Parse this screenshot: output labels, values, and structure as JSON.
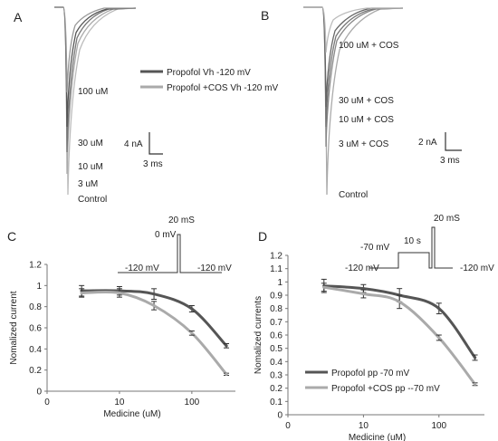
{
  "colors": {
    "propofol": "#555555",
    "cos": "#aaaaaa",
    "axis": "#777777"
  },
  "panels": {
    "A": {
      "letter": "A",
      "legend": [
        "Propofol Vh -120 mV",
        "Propofol +COS Vh -120 mV"
      ],
      "labels": [
        "100 uM",
        "30 uM",
        "10 uM",
        "3 uM",
        "Control"
      ],
      "scale_current": "4 nA",
      "scale_time": "3 ms"
    },
    "B": {
      "letter": "B",
      "labels": [
        "100 uM + COS",
        "30 uM + COS",
        "10 uM + COS",
        "3 uM + COS",
        "Control"
      ],
      "scale_current": "2 nA",
      "scale_time": "3 ms"
    },
    "C": {
      "letter": "C",
      "protocol": {
        "step": "20 mS",
        "test_v": "0 mV",
        "hold_left": "-120 mV",
        "hold_right": "-120 mV"
      }
    },
    "D": {
      "letter": "D",
      "protocol": {
        "step": "20 mS",
        "prepulse_v": "-70 mV",
        "prepulse_t": "10 s",
        "hold_left": "-120 mV",
        "hold_right": "-120 mV"
      },
      "legend": [
        "Propofol pp -70 mV",
        "Propofol +COS pp --70 mV"
      ]
    }
  },
  "chart_data": [
    {
      "panel": "C",
      "type": "line",
      "xscale": "log",
      "xlim": [
        1,
        400
      ],
      "ylim": [
        0,
        1.2
      ],
      "xticks": [
        1,
        10,
        100
      ],
      "xtick_labels": [
        "0",
        "10",
        "100"
      ],
      "yticks": [
        0,
        0.2,
        0.4,
        0.6,
        0.8,
        1,
        1.2
      ],
      "ytick_labels": [
        "0",
        "0.2",
        "0.4",
        "0.6",
        "0.8",
        "1",
        "1.2"
      ],
      "xlabel": "Medicine (uM)",
      "ylabel": "Nomalized current",
      "series": [
        {
          "color_key": "propofol",
          "x": [
            3,
            10,
            30,
            100,
            300
          ],
          "y": [
            0.95,
            0.95,
            0.92,
            0.78,
            0.43
          ],
          "err": [
            0.05,
            0.04,
            0.05,
            0.03,
            0.02
          ]
        },
        {
          "color_key": "cos",
          "x": [
            3,
            10,
            30,
            100,
            300
          ],
          "y": [
            0.93,
            0.93,
            0.81,
            0.55,
            0.16
          ],
          "err": [
            0.04,
            0.04,
            0.04,
            0.02,
            0.01
          ]
        }
      ]
    },
    {
      "panel": "D",
      "type": "line",
      "xscale": "log",
      "xlim": [
        1,
        400
      ],
      "ylim": [
        0,
        1.2
      ],
      "xticks": [
        1,
        10,
        100
      ],
      "xtick_labels": [
        "0",
        "10",
        "100"
      ],
      "yticks": [
        0,
        0.1,
        0.2,
        0.3,
        0.4,
        0.5,
        0.6,
        0.7,
        0.8,
        0.9,
        1,
        1.1,
        1.2
      ],
      "ytick_labels": [
        "0",
        "0.1",
        "0.2",
        "0.3",
        "0.4",
        "0.5",
        "0.6",
        "0.7",
        "0.8",
        "0.9",
        "1",
        "1.1",
        "1.2"
      ],
      "xlabel": "Medicine (uM)",
      "ylabel": "Nomalized currents",
      "series": [
        {
          "color_key": "propofol",
          "name": "Propofol pp -70 mV",
          "x": [
            3,
            10,
            30,
            100,
            300
          ],
          "y": [
            0.97,
            0.95,
            0.9,
            0.8,
            0.43
          ],
          "err": [
            0.05,
            0.03,
            0.05,
            0.04,
            0.02
          ]
        },
        {
          "color_key": "cos",
          "name": "Propofol +COS pp --70 mV",
          "x": [
            3,
            10,
            30,
            100,
            300
          ],
          "y": [
            0.96,
            0.91,
            0.85,
            0.58,
            0.23
          ],
          "err": [
            0.03,
            0.03,
            0.05,
            0.02,
            0.01
          ]
        }
      ]
    }
  ]
}
